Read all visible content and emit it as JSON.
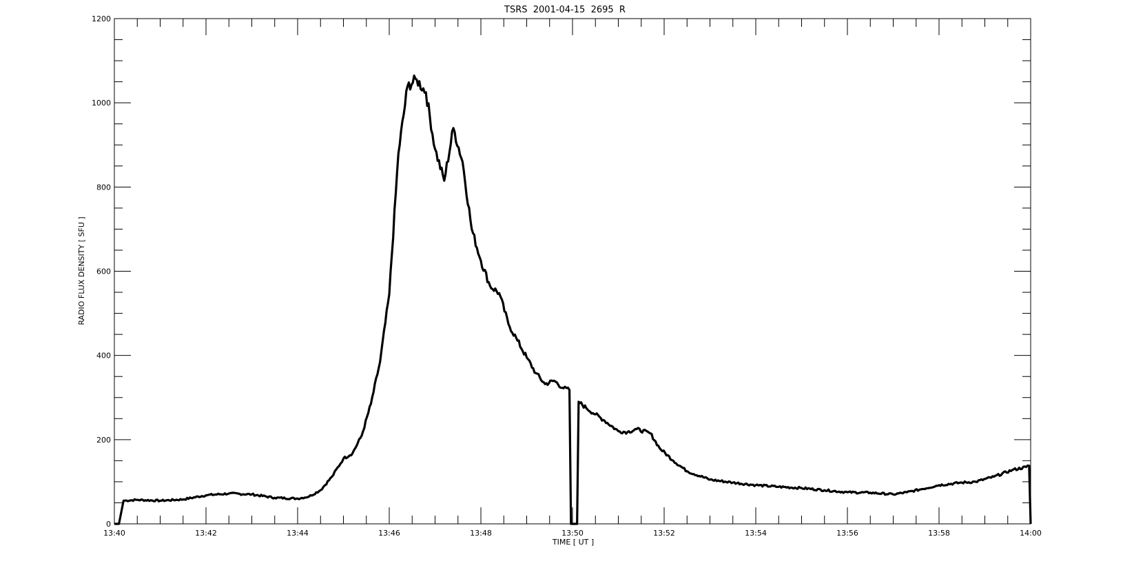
{
  "chart_data": {
    "type": "line",
    "title": "TSRS  2001-04-15  2695  R",
    "xlabel": "TIME [ UT ]",
    "ylabel": "RADIO FLUX DENSITY [ SFU ]",
    "x_unit": "minutes",
    "xlim": [
      "13:40",
      "14:00"
    ],
    "ylim": [
      0,
      1200
    ],
    "xticks": [
      "13:40",
      "13:42",
      "13:44",
      "13:46",
      "13:48",
      "13:50",
      "13:52",
      "13:54",
      "13:56",
      "13:58",
      "14:00"
    ],
    "yticks": [
      0,
      200,
      400,
      600,
      800,
      1000,
      1200
    ],
    "grid": false,
    "legend": "none",
    "line_color": "#000000",
    "series": [
      {
        "x": [
          "13:40:00",
          "13:40:06",
          "13:40:12",
          "13:40:30",
          "13:41:00",
          "13:41:30",
          "13:42:00",
          "13:42:30",
          "13:43:00",
          "13:43:30",
          "13:44:00",
          "13:44:15",
          "13:44:30",
          "13:44:45",
          "13:45:00",
          "13:45:12",
          "13:45:24",
          "13:45:36",
          "13:45:48",
          "13:46:00",
          "13:46:12",
          "13:46:24",
          "13:46:36",
          "13:46:48",
          "13:47:00",
          "13:47:12",
          "13:47:24",
          "13:47:36",
          "13:47:48",
          "13:48:00",
          "13:48:12",
          "13:48:24",
          "13:48:36",
          "13:48:48",
          "13:49:00",
          "13:49:12",
          "13:49:24",
          "13:49:36",
          "13:49:48",
          "13:49:56",
          "13:49:58",
          "13:50:06",
          "13:50:08",
          "13:50:18",
          "13:50:30",
          "13:50:42",
          "13:51:00",
          "13:51:12",
          "13:51:24",
          "13:51:42",
          "13:51:54",
          "13:52:12",
          "13:52:30",
          "13:53:00",
          "13:53:30",
          "13:54:00",
          "13:54:30",
          "13:55:00",
          "13:55:30",
          "13:56:00",
          "13:56:30",
          "13:57:00",
          "13:57:18",
          "13:57:36",
          "13:58:00",
          "13:58:30",
          "13:58:48",
          "13:59:12",
          "13:59:36",
          "13:59:54",
          "13:59:58",
          "14:00:00"
        ],
        "values": [
          0,
          0,
          55,
          57,
          55,
          58,
          68,
          72,
          70,
          62,
          60,
          65,
          80,
          112,
          155,
          168,
          210,
          285,
          385,
          545,
          880,
          1040,
          1055,
          1025,
          890,
          815,
          940,
          860,
          700,
          625,
          565,
          548,
          475,
          435,
          395,
          358,
          332,
          340,
          322,
          318,
          0,
          0,
          290,
          275,
          260,
          245,
          220,
          218,
          225,
          215,
          180,
          150,
          125,
          105,
          98,
          92,
          88,
          85,
          80,
          75,
          74,
          70,
          75,
          82,
          92,
          98,
          100,
          112,
          128,
          135,
          138,
          0
        ]
      }
    ]
  }
}
